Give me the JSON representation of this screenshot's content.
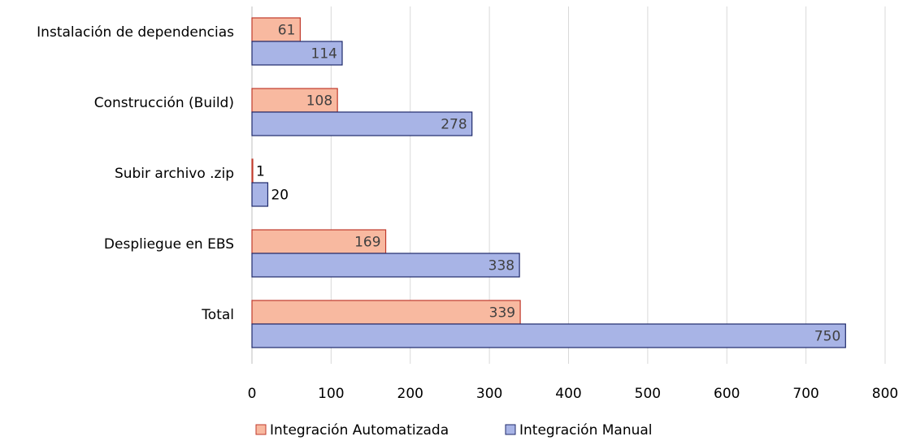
{
  "chart_data": {
    "type": "bar",
    "orientation": "horizontal",
    "categories": [
      "Instalación de dependencias",
      "Construcción (Build)",
      "Subir archivo .zip",
      "Despliegue en EBS",
      "Total"
    ],
    "series": [
      {
        "name": "Integración Automatizada",
        "values": [
          61,
          108,
          1,
          169,
          339
        ],
        "color": "#F8B9A0",
        "border": "#C0392B"
      },
      {
        "name": "Integración Manual",
        "values": [
          114,
          278,
          20,
          338,
          750
        ],
        "color": "#A8B4E6",
        "border": "#1F2A6B"
      }
    ],
    "xlim": [
      0,
      800
    ],
    "xticks": [
      0,
      100,
      200,
      300,
      400,
      500,
      600,
      700,
      800
    ],
    "grid": "vertical",
    "gridColor": "#D9D9D9",
    "legend": "bottom-center",
    "title": "",
    "xlabel": "",
    "ylabel": ""
  }
}
